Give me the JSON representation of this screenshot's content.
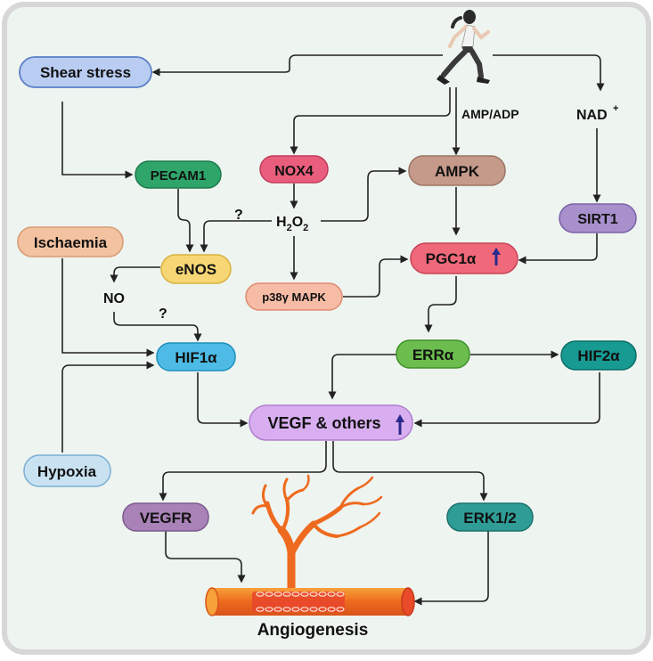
{
  "diagram": {
    "nodes": {
      "shear_stress": "Shear stress",
      "pecam1": "PECAM1",
      "nox4": "NOX4",
      "ampk": "AMPK",
      "amp_adp": "AMP/ADP",
      "nad": "NAD",
      "nad_sup": "+",
      "sirt1": "SIRT1",
      "h2o2_h": "H",
      "h2o2_2a": "2",
      "h2o2_o": "O",
      "h2o2_2b": "2",
      "ischaemia": "Ischaemia",
      "enos": "eNOS",
      "pgc1a": "PGC1α",
      "p38": "p38γ MAPK",
      "no": "NO",
      "hif1a": "HIF1α",
      "erra": "ERRα",
      "hif2a": "HIF2α",
      "vegf": "VEGF & others",
      "hypoxia": "Hypoxia",
      "vegfr": "VEGFR",
      "erk": "ERK1/2",
      "angiogenesis": "Angiogenesis"
    },
    "question_marks": [
      "?",
      "?"
    ],
    "icons": [
      "runner-icon",
      "up-arrow-icon",
      "blood-vessel-icon"
    ],
    "colors": {
      "panel_bg": "#eef4ef",
      "panel_border": "#d7d7d7",
      "arrow": "#222222",
      "shear_stress": "#b9cdf2",
      "pecam1": "#2fa56a",
      "nox4": "#ea5e7d",
      "ampk": "#c59a8a",
      "sirt1": "#a890cc",
      "ischaemia": "#f3c2a0",
      "enos": "#f7d775",
      "pgc1a": "#f0697a",
      "p38": "#f7bca6",
      "hif1a": "#4dbbe6",
      "erra": "#6bbd4e",
      "hif2a": "#179a92",
      "vegf": "#d9aef0",
      "hypoxia": "#c9e2f2",
      "vegfr": "#a982b8",
      "erk": "#2f9d96",
      "vessel": "#ee6a1e",
      "up_arrow": "#2a2a8f"
    }
  }
}
